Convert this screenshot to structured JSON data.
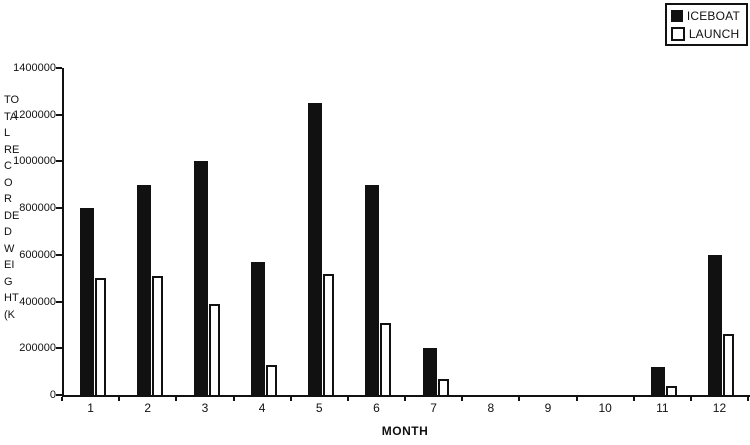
{
  "chart_data": {
    "type": "bar",
    "title": "",
    "xlabel": "MONTH",
    "ylabel": "TOTAL RECORDED WEIGHT (K",
    "ylabel_lines": [
      "TO",
      "TA",
      "L",
      "RE",
      "C",
      "O",
      "R",
      "DE",
      "D",
      "W",
      "EI",
      "G",
      "HT",
      "(K"
    ],
    "categories": [
      "1",
      "2",
      "3",
      "4",
      "5",
      "6",
      "7",
      "8",
      "9",
      "10",
      "11",
      "12"
    ],
    "series": [
      {
        "name": "ICEBOAT",
        "style": "solid",
        "color": "#111111",
        "values": [
          800000,
          900000,
          1000000,
          570000,
          1250000,
          900000,
          200000,
          0,
          0,
          0,
          120000,
          600000
        ]
      },
      {
        "name": "LAUNCH",
        "style": "outline",
        "color": "#ffffff",
        "values": [
          500000,
          510000,
          390000,
          130000,
          520000,
          310000,
          70000,
          0,
          0,
          0,
          40000,
          260000
        ]
      }
    ],
    "ylim": [
      0,
      1400000
    ],
    "yticks": [
      0,
      200000,
      400000,
      600000,
      800000,
      1000000,
      1200000,
      1400000
    ],
    "grid": false,
    "legend_position": "top-right",
    "axis_color": "#111111"
  }
}
